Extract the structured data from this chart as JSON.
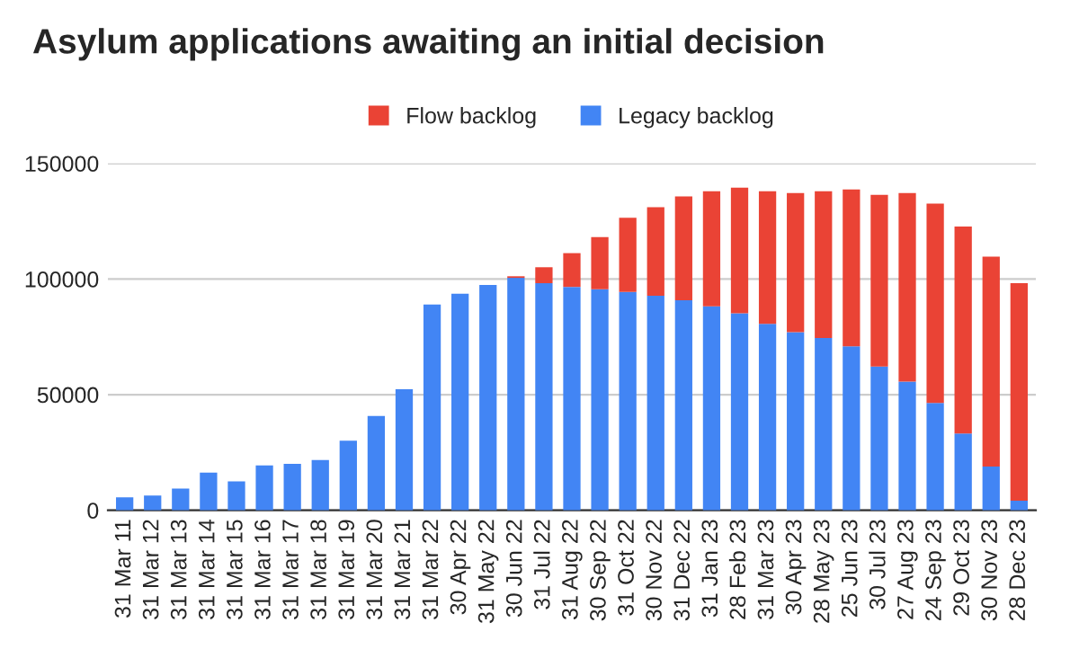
{
  "chart_data": {
    "type": "bar",
    "title": "Asylum applications awaiting an initial decision",
    "categories": [
      "31 Mar 11",
      "31 Mar 12",
      "31 Mar 13",
      "31 Mar 14",
      "31 Mar 15",
      "31 Mar 16",
      "31 Mar 17",
      "31 Mar 18",
      "31 Mar 19",
      "31 Mar 20",
      "31 Mar 21",
      "31 Mar 22",
      "30 Apr 22",
      "31 May 22",
      "30 Jun 22",
      "31 Jul 22",
      "31 Aug 22",
      "30 Sep 22",
      "31 Oct 22",
      "30 Nov 22",
      "31 Dec 22",
      "31 Jan 23",
      "28 Feb 23",
      "31 Mar 23",
      "30 Apr 23",
      "28 May 23",
      "25 Jun 23",
      "30 Jul 23",
      "27 Aug 23",
      "24 Sep 23",
      "29 Oct 23",
      "30 Nov 23",
      "28 Dec 23"
    ],
    "stacked": true,
    "series": [
      {
        "name": "Legacy backlog",
        "color": "#4285f4",
        "values": [
          5600,
          6400,
          9400,
          16300,
          12500,
          19400,
          20100,
          21700,
          30100,
          40800,
          52300,
          89000,
          93600,
          97400,
          100500,
          98200,
          96600,
          95600,
          94400,
          92800,
          90800,
          88200,
          85200,
          80600,
          77000,
          74500,
          70900,
          62200,
          55600,
          46400,
          33200,
          18900,
          4100
        ]
      },
      {
        "name": "Flow backlog",
        "color": "#ea4335",
        "values": [
          null,
          null,
          null,
          null,
          null,
          null,
          null,
          null,
          null,
          null,
          null,
          null,
          null,
          null,
          700,
          6900,
          14600,
          22500,
          32100,
          38300,
          44900,
          49800,
          54300,
          57400,
          60200,
          63500,
          67800,
          74200,
          81600,
          86200,
          89500,
          90800,
          94100
        ]
      }
    ],
    "ylim": [
      0,
      150000
    ],
    "yticks": [
      0,
      50000,
      100000,
      150000
    ],
    "grid": "y",
    "legend": "top"
  }
}
